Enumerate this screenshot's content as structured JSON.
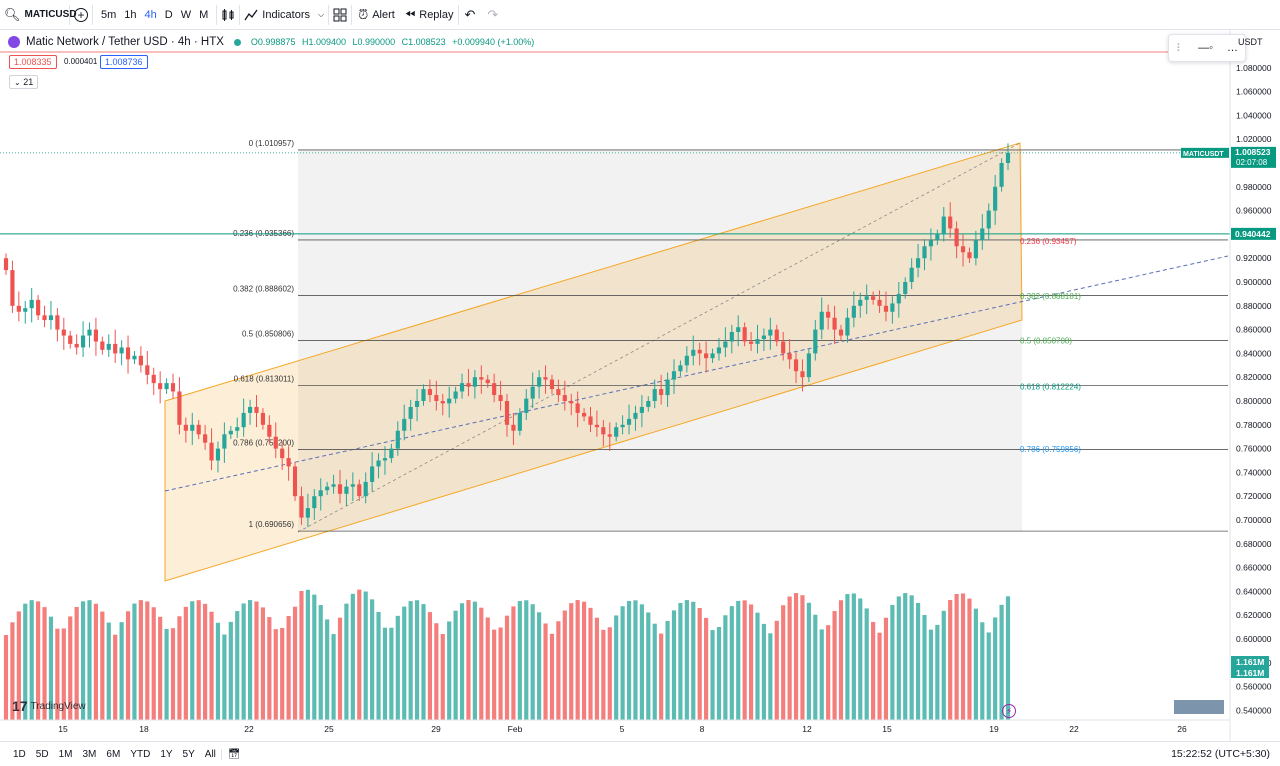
{
  "topbar": {
    "symbol": "MATICUSD",
    "timeframes": [
      "5m",
      "1h",
      "4h",
      "D",
      "W",
      "M"
    ],
    "active_timeframe": "4h",
    "indicators_label": "Indicators",
    "alert_label": "Alert",
    "replay_label": "Replay"
  },
  "legend": {
    "title": "Matic Network / Tether USD · 4h · HTX",
    "open": "O0.998875",
    "high": "H1.009400",
    "low": "L0.990000",
    "close": "C1.008523",
    "change": "+0.009940 (+1.00%)",
    "bid": "1.008335",
    "spread": "0.000401",
    "ask": "1.008736",
    "indicator_count": "21"
  },
  "price_axis": {
    "currency": "USDT",
    "ticks": [
      "1.080000",
      "1.060000",
      "1.040000",
      "1.020000",
      "0.980000",
      "0.960000",
      "0.920000",
      "0.900000",
      "0.880000",
      "0.860000",
      "0.840000",
      "0.820000",
      "0.800000",
      "0.780000",
      "0.760000",
      "0.740000",
      "0.720000",
      "0.700000",
      "0.680000",
      "0.660000",
      "0.640000",
      "0.620000",
      "0.600000",
      "0.580000",
      "0.560000",
      "0.540000"
    ],
    "tick_values": [
      1.08,
      1.06,
      1.04,
      1.02,
      0.98,
      0.96,
      0.92,
      0.9,
      0.88,
      0.86,
      0.84,
      0.82,
      0.8,
      0.78,
      0.76,
      0.74,
      0.72,
      0.7,
      0.68,
      0.66,
      0.64,
      0.62,
      0.6,
      0.58,
      0.56,
      0.54
    ],
    "last_symbol": "MATICUSDT",
    "last_price": "1.008523",
    "last_value": 1.008523,
    "countdown": "02:07:08",
    "hline_price": "0.940442",
    "hline_value": 0.940442,
    "volume_label_1": "1.161M",
    "volume_label_2": "1.161M"
  },
  "fib_left": [
    {
      "label": "0 (1.010957)",
      "value": 1.010957
    },
    {
      "label": "0.236 (0.935366)",
      "value": 0.935366
    },
    {
      "label": "0.382 (0.888602)",
      "value": 0.888602
    },
    {
      "label": "0.5 (0.850806)",
      "value": 0.850806
    },
    {
      "label": "0.618 (0.813011)",
      "value": 0.813011
    },
    {
      "label": "0.786 (0.759200)",
      "value": 0.7592
    },
    {
      "label": "1 (0.690656)",
      "value": 0.690656
    }
  ],
  "fib_right": [
    {
      "label": "0.236 (0.93457)",
      "value": 0.93457,
      "color": "#f23645"
    },
    {
      "label": "0.382 (0.888181)",
      "value": 0.888181,
      "color": "#4caf50"
    },
    {
      "label": "0.5 (0.850708)",
      "value": 0.850708,
      "color": "#4caf50"
    },
    {
      "label": "0.618 (0.812224)",
      "value": 0.812224,
      "color": "#089981"
    },
    {
      "label": "0.786 (0.759856)",
      "value": 0.759856,
      "color": "#2196f3"
    }
  ],
  "time_axis": {
    "labels": [
      "15",
      "18",
      "22",
      "25",
      "29",
      "Feb",
      "5",
      "8",
      "12",
      "15",
      "19",
      "22",
      "26"
    ]
  },
  "watermark": "TradingView",
  "bottombar": {
    "ranges": [
      "1D",
      "5D",
      "1M",
      "3M",
      "6M",
      "YTD",
      "1Y",
      "5Y",
      "All"
    ],
    "clock": "15:22:52 (UTC+5:30)"
  },
  "colors": {
    "up": "#26a69a",
    "down": "#ef5350",
    "channel": "#f5a623",
    "accent": "#2962ff"
  },
  "chart_data": {
    "type": "candlestick",
    "title": "Matic Network / Tether USD · 4h · HTX",
    "ylim": [
      0.53,
      1.09
    ],
    "closes": [
      0.91,
      0.88,
      0.875,
      0.878,
      0.885,
      0.872,
      0.868,
      0.872,
      0.86,
      0.855,
      0.848,
      0.845,
      0.855,
      0.86,
      0.85,
      0.843,
      0.848,
      0.84,
      0.845,
      0.835,
      0.838,
      0.83,
      0.822,
      0.815,
      0.81,
      0.815,
      0.808,
      0.78,
      0.775,
      0.78,
      0.772,
      0.765,
      0.75,
      0.76,
      0.772,
      0.775,
      0.778,
      0.79,
      0.795,
      0.79,
      0.78,
      0.77,
      0.76,
      0.752,
      0.745,
      0.72,
      0.702,
      0.71,
      0.72,
      0.725,
      0.728,
      0.73,
      0.722,
      0.728,
      0.73,
      0.72,
      0.732,
      0.745,
      0.75,
      0.752,
      0.76,
      0.775,
      0.785,
      0.795,
      0.8,
      0.81,
      0.805,
      0.8,
      0.798,
      0.802,
      0.808,
      0.815,
      0.812,
      0.82,
      0.818,
      0.815,
      0.805,
      0.8,
      0.78,
      0.775,
      0.79,
      0.802,
      0.812,
      0.82,
      0.818,
      0.81,
      0.805,
      0.8,
      0.798,
      0.79,
      0.787,
      0.78,
      0.778,
      0.772,
      0.77,
      0.778,
      0.78,
      0.785,
      0.79,
      0.795,
      0.8,
      0.81,
      0.805,
      0.818,
      0.825,
      0.83,
      0.838,
      0.843,
      0.84,
      0.836,
      0.84,
      0.845,
      0.85,
      0.858,
      0.862,
      0.85,
      0.848,
      0.852,
      0.855,
      0.86,
      0.85,
      0.84,
      0.835,
      0.825,
      0.82,
      0.84,
      0.86,
      0.875,
      0.87,
      0.86,
      0.855,
      0.87,
      0.88,
      0.885,
      0.888,
      0.885,
      0.88,
      0.875,
      0.882,
      0.89,
      0.9,
      0.912,
      0.92,
      0.93,
      0.935,
      0.94,
      0.955,
      0.945,
      0.93,
      0.925,
      0.92,
      0.935,
      0.945,
      0.96,
      0.98,
      1.0,
      1.008523
    ]
  }
}
